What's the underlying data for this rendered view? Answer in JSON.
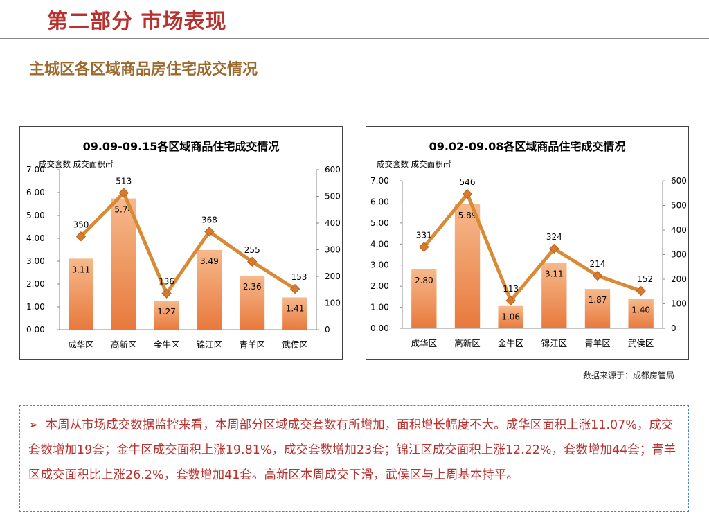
{
  "page": {
    "title": "第二部分 市场表现",
    "subtitle": "主城区各区域商品房住宅成交情况",
    "source": "数据来源于：成都房管局",
    "note_bullet": "➢",
    "note": "本周从市场成交数据监控来看，本周部分区域成交套数有所增加，面积增长幅度不大。成华区面积上涨11.07%，成交套数增加19套；金牛区成交面积上涨19.81%，成交套数增加23套；锦江区成交面积上涨12.22%，套数增加44套；青羊区成交面积比上涨26.2%，套数增加41套。高新区本周成交下滑，武侯区与上周基本持平。"
  },
  "colors": {
    "bar_top": "#f6b98c",
    "bar_bottom": "#e8793c",
    "line": "#d98a36",
    "marker": "#d9792b",
    "title_red": "#b7312f",
    "subtitle_brown": "#9b6a2e"
  },
  "chart_data": [
    {
      "type": "bar+line",
      "title": "09.09-09.15各区域商品住宅成交情况",
      "axis_label": "成交套数 成交面积㎡",
      "categories": [
        "成华区",
        "高新区",
        "金牛区",
        "锦江区",
        "青羊区",
        "武侯区"
      ],
      "series": [
        {
          "axis": "left",
          "kind": "bar",
          "values": [
            3.11,
            5.74,
            1.27,
            3.49,
            2.36,
            1.41
          ],
          "labels": [
            "3.11",
            "5.74",
            "1.27",
            "3.49",
            "2.36",
            "1.41"
          ]
        },
        {
          "axis": "right",
          "kind": "line",
          "values": [
            350,
            513,
            136,
            368,
            255,
            153
          ],
          "labels": [
            "350",
            "513",
            "136",
            "368",
            "255",
            "153"
          ]
        }
      ],
      "left_ticks": [
        "0.00",
        "1.00",
        "2.00",
        "3.00",
        "4.00",
        "5.00",
        "6.00",
        "7.00"
      ],
      "right_ticks": [
        "0",
        "100",
        "200",
        "300",
        "400",
        "500",
        "600"
      ],
      "ylim_left": [
        0,
        7
      ],
      "ylim_right": [
        0,
        600
      ]
    },
    {
      "type": "bar+line",
      "title": "09.02-09.08各区域商品住宅成交情况",
      "axis_label": "成交套数 成交面积㎡",
      "categories": [
        "成华区",
        "高新区",
        "金牛区",
        "锦江区",
        "青羊区",
        "武侯区"
      ],
      "series": [
        {
          "axis": "left",
          "kind": "bar",
          "values": [
            2.8,
            5.89,
            1.06,
            3.11,
            1.87,
            1.4
          ],
          "labels": [
            "2.80",
            "5.89",
            "1.06",
            "3.11",
            "1.87",
            "1.40"
          ]
        },
        {
          "axis": "right",
          "kind": "line",
          "values": [
            331,
            546,
            113,
            324,
            214,
            152
          ],
          "labels": [
            "331",
            "546",
            "113",
            "324",
            "214",
            "152"
          ]
        }
      ],
      "left_ticks": [
        "0.00",
        "1.00",
        "2.00",
        "3.00",
        "4.00",
        "5.00",
        "6.00",
        "7.00"
      ],
      "right_ticks": [
        "0",
        "100",
        "200",
        "300",
        "400",
        "500",
        "600"
      ],
      "ylim_left": [
        0,
        7
      ],
      "ylim_right": [
        0,
        600
      ]
    }
  ]
}
